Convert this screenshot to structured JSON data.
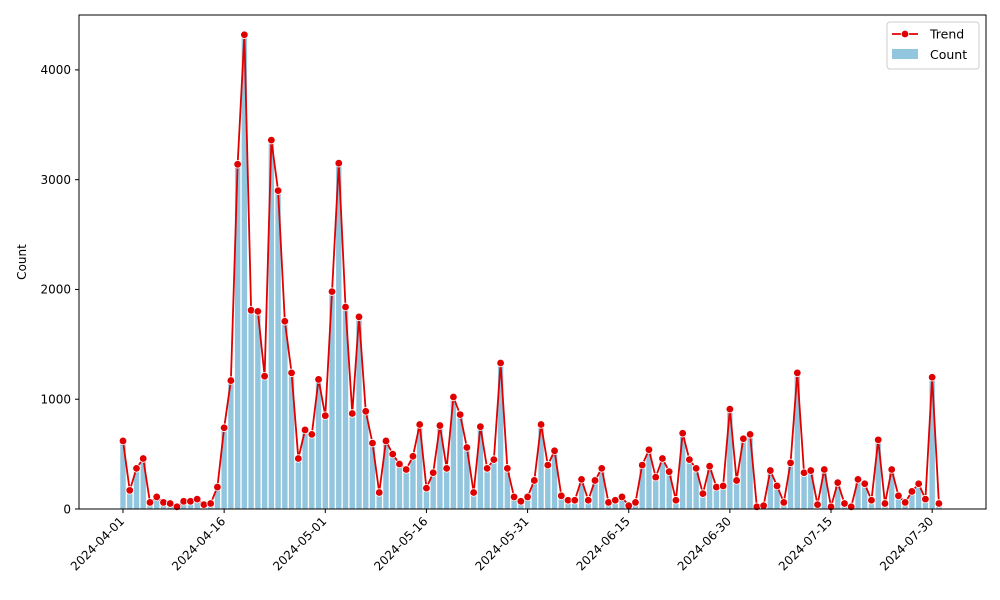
{
  "chart_data": {
    "type": "bar",
    "ylabel": "Count",
    "ylim": [
      0,
      4500
    ],
    "yticks": [
      0,
      1000,
      2000,
      3000,
      4000
    ],
    "xticks": [
      "2024-04-01",
      "2024-04-16",
      "2024-05-01",
      "2024-05-16",
      "2024-05-31",
      "2024-06-15",
      "2024-06-30",
      "2024-07-15",
      "2024-07-30"
    ],
    "x_start": "2024-04-01",
    "x_end": "2024-08-01",
    "grid": false,
    "legend_position": "top-right",
    "series": [
      {
        "name": "Trend",
        "type": "line",
        "color": "#e00000"
      },
      {
        "name": "Count",
        "type": "bar",
        "color": "#92c5de"
      }
    ],
    "values": [
      620,
      170,
      370,
      460,
      60,
      110,
      60,
      50,
      20,
      70,
      70,
      90,
      40,
      50,
      200,
      740,
      1170,
      3140,
      4320,
      1810,
      1800,
      1210,
      3360,
      2900,
      1710,
      1240,
      460,
      720,
      680,
      1180,
      850,
      1980,
      3150,
      1840,
      870,
      1750,
      890,
      600,
      150,
      620,
      500,
      410,
      360,
      480,
      770,
      190,
      330,
      760,
      370,
      1020,
      860,
      560,
      150,
      750,
      370,
      450,
      1330,
      370,
      110,
      70,
      110,
      260,
      770,
      400,
      530,
      120,
      80,
      80,
      270,
      80,
      260,
      370,
      60,
      80,
      110,
      30,
      60,
      400,
      540,
      290,
      460,
      340,
      80,
      690,
      450,
      370,
      140,
      390,
      200,
      210,
      910,
      260,
      640,
      680,
      20,
      30,
      350,
      210,
      60,
      420,
      1240,
      330,
      350,
      40,
      360,
      20,
      240,
      50,
      20,
      270,
      230,
      80,
      630,
      50,
      360,
      120,
      60,
      160,
      230,
      90,
      1200,
      50
    ]
  }
}
